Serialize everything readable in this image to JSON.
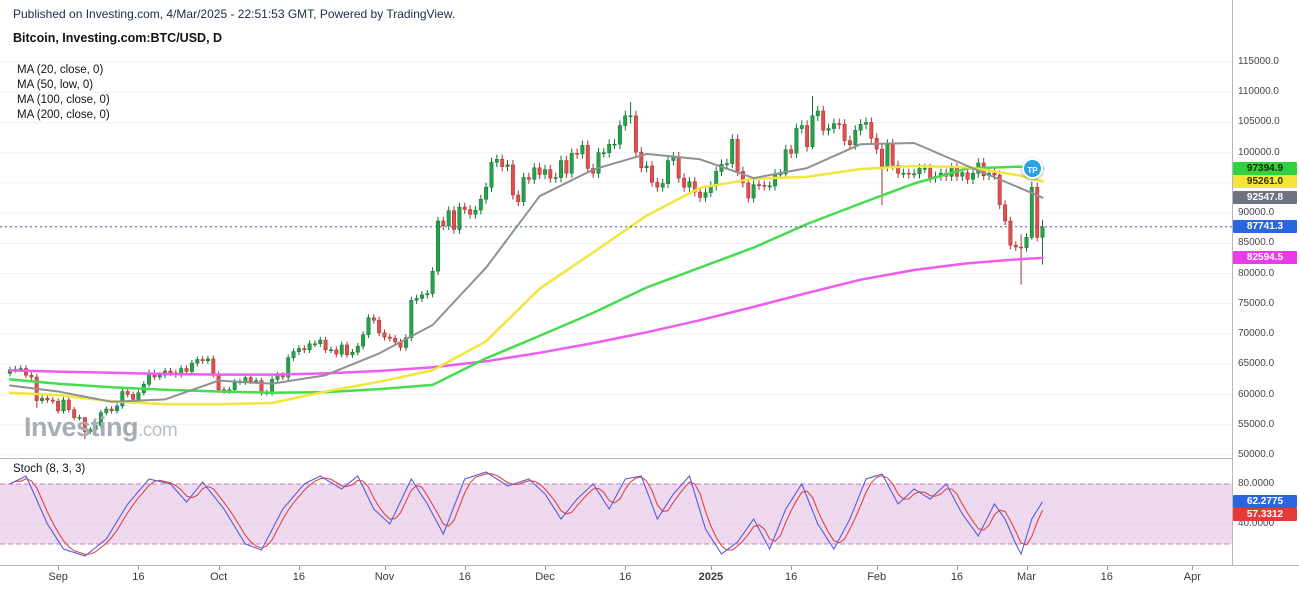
{
  "header": {
    "published": "Published on Investing.com, 4/Mar/2025 - 22:51:53 GMT, Powered by TradingView.",
    "title": "Bitcoin, Investing.com:BTC/USD, D"
  },
  "legend": {
    "items": [
      "MA (20, close, 0)",
      "MA (50, low, 0)",
      "MA (100, close, 0)",
      "MA (200, close, 0)"
    ]
  },
  "watermark": {
    "name": "Investing",
    "suffix": ".com"
  },
  "stoch_title": "Stoch (8, 3, 3)",
  "publisher_badge": "TP",
  "chart_data": [
    {
      "type": "candlestick",
      "title": "Bitcoin, Investing.com:BTC/USD, D",
      "ylim": [
        50000,
        115000
      ],
      "grid": "faint-horizontal",
      "legend_position": "top-left",
      "y_ticks": [
        "115000.0",
        "110000.0",
        "105000.0",
        "100000.0",
        "95000.0",
        "90000.0",
        "85000.0",
        "80000.0",
        "75000.0",
        "70000.0",
        "65000.0",
        "60000.0",
        "55000.0",
        "50000.0"
      ],
      "x_ticks": [
        {
          "label": "Sep",
          "day": 9
        },
        {
          "label": "16",
          "day": 24
        },
        {
          "label": "Oct",
          "day": 39
        },
        {
          "label": "16",
          "day": 54
        },
        {
          "label": "Nov",
          "day": 70
        },
        {
          "label": "16",
          "day": 85
        },
        {
          "label": "Dec",
          "day": 100
        },
        {
          "label": "16",
          "day": 115
        },
        {
          "label": "2025",
          "day": 131,
          "bold": true
        },
        {
          "label": "16",
          "day": 146
        },
        {
          "label": "Feb",
          "day": 162
        },
        {
          "label": "16",
          "day": 177
        },
        {
          "label": "Mar",
          "day": 190
        },
        {
          "label": "16",
          "day": 205
        },
        {
          "label": "Apr",
          "day": 221
        }
      ],
      "open_first": 63500,
      "closes": [
        64100,
        64200,
        64300,
        63200,
        62900,
        59000,
        59400,
        59100,
        58900,
        57300,
        59100,
        57500,
        56200,
        56200,
        53900,
        54200,
        54900,
        57000,
        57600,
        57300,
        58100,
        60500,
        60000,
        59200,
        60300,
        61700,
        63600,
        62900,
        63200,
        63900,
        63600,
        63300,
        64300,
        63800,
        65200,
        65800,
        65600,
        65900,
        63300,
        60800,
        60600,
        60800,
        62100,
        62100,
        62800,
        62200,
        62300,
        60300,
        60300,
        62500,
        63200,
        62900,
        66100,
        67100,
        67600,
        67400,
        68400,
        68400,
        69000,
        67400,
        67400,
        66700,
        68200,
        66600,
        67000,
        68000,
        69900,
        72700,
        72300,
        70200,
        69500,
        69300,
        68700,
        67800,
        69400,
        75600,
        75900,
        76500,
        76700,
        80400,
        88700,
        87900,
        90400,
        87300,
        91000,
        90600,
        89800,
        90500,
        92300,
        94300,
        98400,
        98900,
        97700,
        98000,
        93000,
        91900,
        95900,
        95600,
        97500,
        96400,
        97200,
        95800,
        95900,
        98700,
        96600,
        99900,
        99800,
        101200,
        97400,
        96600,
        100000,
        100000,
        101400,
        101400,
        104500,
        106100,
        106100,
        100100,
        97500,
        97800,
        95100,
        94300,
        94900,
        98700,
        99300,
        95800,
        94300,
        95200,
        93500,
        92600,
        93400,
        94500,
        96900,
        98100,
        98200,
        102200,
        96900,
        95000,
        92500,
        94700,
        94600,
        94500,
        94500,
        96500,
        96500,
        100500,
        99900,
        104000,
        104500,
        101000,
        106100,
        106900,
        103700,
        104000,
        104800,
        104700,
        102000,
        101300,
        103700,
        104700,
        105000,
        102400,
        100600,
        97700,
        101400,
        97900,
        96600,
        96600,
        96500,
        96500,
        97400,
        97400,
        95800,
        96100,
        96600,
        96100,
        97500,
        96100,
        96700,
        95600,
        96600,
        98300,
        96200,
        96600,
        96300,
        91400,
        88700,
        84700,
        84400,
        84300,
        86000,
        94300,
        86000,
        87741.3
      ],
      "wick_overrides": {
        "5": [
          63400,
          57800
        ],
        "14": [
          56200,
          52600
        ],
        "116": [
          108400,
          104800
        ],
        "150": [
          109400,
          100600
        ],
        "163": [
          101500,
          91300
        ],
        "189": [
          86500,
          78200
        ],
        "191": [
          95200,
          85600
        ],
        "193": [
          88900,
          81500
        ]
      },
      "up_color": "#26a248",
      "up_border": "#157033",
      "down_color": "#e34f4f",
      "down_border": "#a93030",
      "current_price": 87741.3,
      "current_price_line_color": "#3c5a96",
      "series": [
        {
          "name": "MA (200, close, 0)",
          "color": "#ee5cee",
          "width": 2.5,
          "points": [
            [
              0,
              64000
            ],
            [
              9,
              63800
            ],
            [
              19,
              63600
            ],
            [
              29,
              63400
            ],
            [
              39,
              63300
            ],
            [
              49,
              63300
            ],
            [
              59,
              63500
            ],
            [
              69,
              63900
            ],
            [
              79,
              64500
            ],
            [
              89,
              65500
            ],
            [
              99,
              66900
            ],
            [
              109,
              68500
            ],
            [
              119,
              70300
            ],
            [
              129,
              72300
            ],
            [
              139,
              74500
            ],
            [
              149,
              76800
            ],
            [
              159,
              79000
            ],
            [
              169,
              80600
            ],
            [
              179,
              81700
            ],
            [
              189,
              82400
            ],
            [
              193,
              82594.5
            ]
          ]
        },
        {
          "name": "MA (100, close, 0)",
          "color": "#45dd4f",
          "width": 2.5,
          "points": [
            [
              0,
              62500
            ],
            [
              9,
              61800
            ],
            [
              19,
              61200
            ],
            [
              29,
              60800
            ],
            [
              39,
              60500
            ],
            [
              49,
              60300
            ],
            [
              59,
              60400
            ],
            [
              69,
              60900
            ],
            [
              79,
              61600
            ],
            [
              89,
              66000
            ],
            [
              99,
              69700
            ],
            [
              109,
              73500
            ],
            [
              119,
              77700
            ],
            [
              129,
              81000
            ],
            [
              139,
              84300
            ],
            [
              149,
              88200
            ],
            [
              159,
              91600
            ],
            [
              169,
              94900
            ],
            [
              179,
              97400
            ],
            [
              189,
              97700
            ],
            [
              193,
              97394.9
            ]
          ]
        },
        {
          "name": "MA (50, low, 0)",
          "color": "#f2e53c",
          "width": 2.5,
          "points": [
            [
              0,
              60300
            ],
            [
              9,
              59900
            ],
            [
              19,
              58900
            ],
            [
              29,
              58400
            ],
            [
              39,
              58400
            ],
            [
              49,
              58600
            ],
            [
              59,
              60500
            ],
            [
              69,
              62100
            ],
            [
              79,
              64000
            ],
            [
              89,
              68800
            ],
            [
              99,
              77500
            ],
            [
              109,
              83500
            ],
            [
              119,
              89600
            ],
            [
              129,
              94200
            ],
            [
              139,
              95700
            ],
            [
              149,
              96000
            ],
            [
              159,
              97300
            ],
            [
              169,
              97800
            ],
            [
              179,
              97600
            ],
            [
              189,
              96200
            ],
            [
              193,
              95261.0
            ]
          ]
        },
        {
          "name": "MA (20, close, 0)",
          "color": "#8f9194",
          "width": 2,
          "points": [
            [
              0,
              61500
            ],
            [
              9,
              60500
            ],
            [
              19,
              58800
            ],
            [
              29,
              59200
            ],
            [
              39,
              62300
            ],
            [
              49,
              61800
            ],
            [
              59,
              63200
            ],
            [
              69,
              66800
            ],
            [
              79,
              71500
            ],
            [
              89,
              81000
            ],
            [
              99,
              92800
            ],
            [
              109,
              97200
            ],
            [
              119,
              99800
            ],
            [
              129,
              98900
            ],
            [
              139,
              95800
            ],
            [
              149,
              97450
            ],
            [
              159,
              101400
            ],
            [
              169,
              101600
            ],
            [
              179,
              97800
            ],
            [
              189,
              94100
            ],
            [
              193,
              92547.8
            ]
          ]
        }
      ],
      "price_flags": [
        {
          "text": "97394.9",
          "value": 97394.9,
          "bg": "#33d13f",
          "fg": "#0b2e0b"
        },
        {
          "text": "95261.0",
          "value": 95261.0,
          "bg": "#f3e53a",
          "fg": "#3a3000"
        },
        {
          "text": "92547.8",
          "value": 92547.8,
          "bg": "#6f7380",
          "fg": "#ffffff"
        },
        {
          "text": "87741.3",
          "value": 87741.3,
          "bg": "#2a66dd",
          "fg": "#ffffff"
        },
        {
          "text": "82594.5",
          "value": 82594.5,
          "bg": "#e93ce9",
          "fg": "#ffffff"
        }
      ]
    },
    {
      "type": "line",
      "title": "Stoch (8, 3, 3)",
      "ylim": [
        0,
        100
      ],
      "band": [
        20,
        80
      ],
      "band_fill": "#ecd2ec",
      "band_line": "#c77fc7",
      "y_ticks": [
        {
          "label": "80.0000",
          "value": 80
        },
        {
          "label": "60.0000",
          "value": 60
        },
        {
          "label": "40.0000",
          "value": 40
        }
      ],
      "series": [
        {
          "name": "%K",
          "color": "#5b5bd6",
          "points": [
            [
              0,
              80
            ],
            [
              3,
              88
            ],
            [
              7,
              40
            ],
            [
              10,
              15
            ],
            [
              14,
              8
            ],
            [
              18,
              25
            ],
            [
              22,
              60
            ],
            [
              26,
              85
            ],
            [
              30,
              80
            ],
            [
              33,
              62
            ],
            [
              36,
              82
            ],
            [
              40,
              55
            ],
            [
              44,
              20
            ],
            [
              47,
              14
            ],
            [
              51,
              55
            ],
            [
              55,
              80
            ],
            [
              58,
              88
            ],
            [
              62,
              75
            ],
            [
              65,
              88
            ],
            [
              68,
              55
            ],
            [
              71,
              40
            ],
            [
              75,
              85
            ],
            [
              78,
              60
            ],
            [
              81,
              30
            ],
            [
              85,
              85
            ],
            [
              89,
              92
            ],
            [
              93,
              78
            ],
            [
              97,
              85
            ],
            [
              100,
              70
            ],
            [
              103,
              45
            ],
            [
              106,
              65
            ],
            [
              109,
              80
            ],
            [
              112,
              55
            ],
            [
              115,
              85
            ],
            [
              118,
              88
            ],
            [
              121,
              45
            ],
            [
              124,
              70
            ],
            [
              127,
              88
            ],
            [
              130,
              35
            ],
            [
              133,
              10
            ],
            [
              136,
              22
            ],
            [
              139,
              45
            ],
            [
              142,
              15
            ],
            [
              145,
              55
            ],
            [
              148,
              80
            ],
            [
              151,
              40
            ],
            [
              154,
              15
            ],
            [
              157,
              45
            ],
            [
              160,
              85
            ],
            [
              163,
              90
            ],
            [
              166,
              60
            ],
            [
              169,
              75
            ],
            [
              172,
              65
            ],
            [
              175,
              80
            ],
            [
              178,
              50
            ],
            [
              181,
              28
            ],
            [
              184,
              60
            ],
            [
              186,
              45
            ],
            [
              188,
              20
            ],
            [
              189,
              10
            ],
            [
              191,
              45
            ],
            [
              193,
              62.28
            ]
          ]
        },
        {
          "name": "%D",
          "color": "#e04545",
          "derived": "sma3-of-%K"
        }
      ],
      "value_flags": [
        {
          "text": "62.2775",
          "value": 62.2775,
          "bg": "#2a66dd",
          "fg": "#ffffff"
        },
        {
          "text": "57.3312",
          "value": 57.3312,
          "bg": "#e33b3b",
          "fg": "#ffffff"
        }
      ]
    }
  ]
}
